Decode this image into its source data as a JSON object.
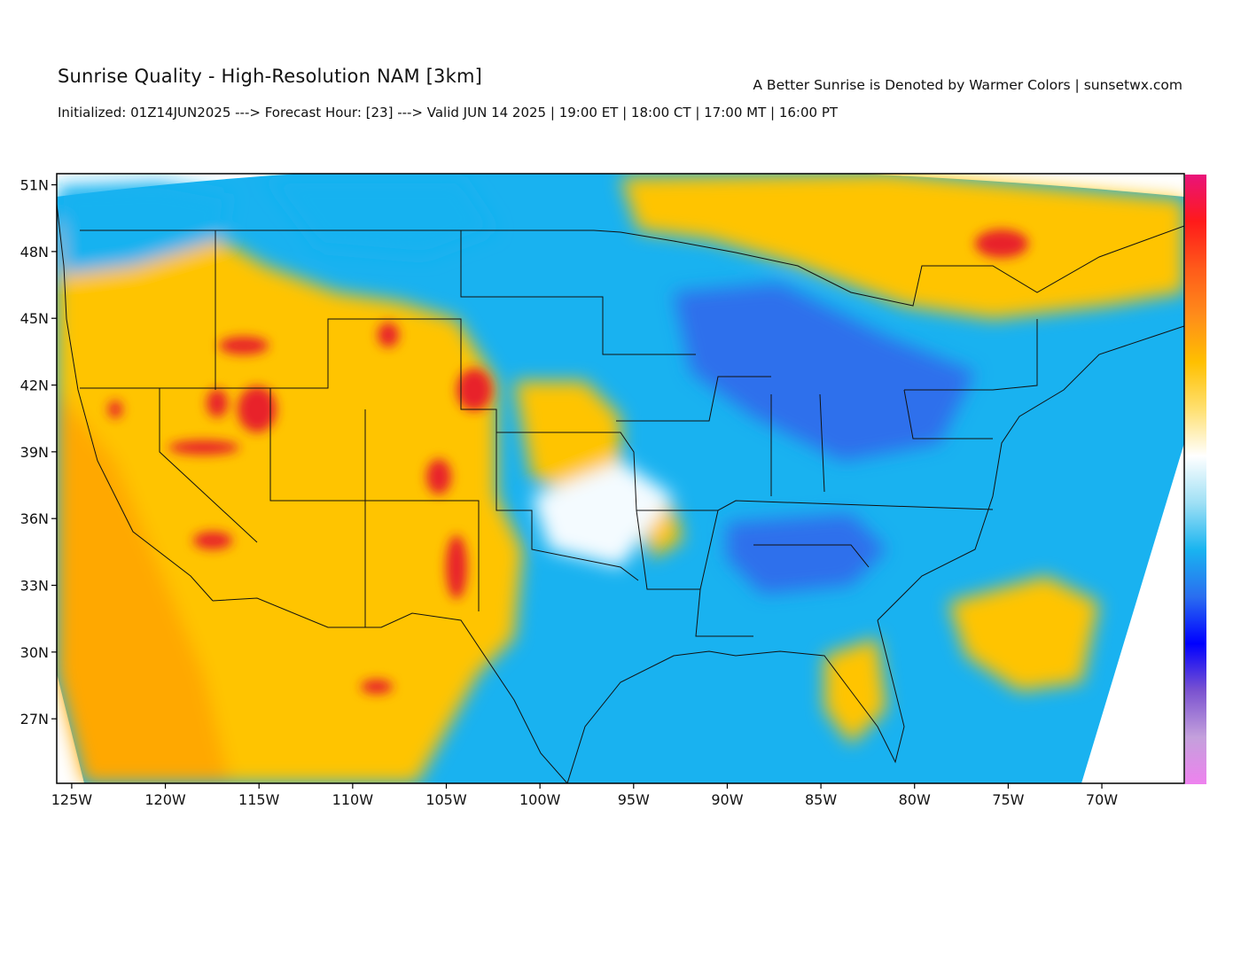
{
  "header": {
    "title": "Sunrise Quality - High-Resolution NAM [3km]",
    "subtitle": "Initialized: 01Z14JUN2025 ---> Forecast Hour: [23] ---> Valid JUN 14 2025 | 19:00 ET | 18:00 CT | 17:00 MT | 16:00 PT",
    "credit": "A Better Sunrise is Denoted by Warmer Colors | sunsetwx.com"
  },
  "map": {
    "lon_range": [
      -125.8,
      -65.6
    ],
    "lat_range": [
      24.1,
      51.5
    ],
    "lat_ticks": [
      {
        "value": 51,
        "label": "51N"
      },
      {
        "value": 48,
        "label": "48N"
      },
      {
        "value": 45,
        "label": "45N"
      },
      {
        "value": 42,
        "label": "42N"
      },
      {
        "value": 39,
        "label": "39N"
      },
      {
        "value": 36,
        "label": "36N"
      },
      {
        "value": 33,
        "label": "33N"
      },
      {
        "value": 30,
        "label": "30N"
      },
      {
        "value": 27,
        "label": "27N"
      }
    ],
    "lon_ticks": [
      {
        "value": -125,
        "label": "125W"
      },
      {
        "value": -120,
        "label": "120W"
      },
      {
        "value": -115,
        "label": "115W"
      },
      {
        "value": -110,
        "label": "110W"
      },
      {
        "value": -105,
        "label": "105W"
      },
      {
        "value": -100,
        "label": "100W"
      },
      {
        "value": -95,
        "label": "95W"
      },
      {
        "value": -90,
        "label": "90W"
      },
      {
        "value": -85,
        "label": "85W"
      },
      {
        "value": -80,
        "label": "80W"
      },
      {
        "value": -75,
        "label": "75W"
      },
      {
        "value": -70,
        "label": "70W"
      }
    ],
    "colorbar": [
      "#e9137a",
      "#ff1a1a",
      "#ff5a1a",
      "#ff8c1a",
      "#ffc000",
      "#ffe070",
      "#ffffff",
      "#9fe0f5",
      "#19b4f0",
      "#2a6ef0",
      "#0000ff",
      "#7a52d0",
      "#c4a0dc",
      "#ee82ee"
    ],
    "fill_colors": {
      "warm": "#ffc400",
      "orange": "#ffa800",
      "red": "#e8222a",
      "cool": "#19b2f0",
      "blue": "#2d6fec",
      "white": "#f4fbff"
    }
  }
}
